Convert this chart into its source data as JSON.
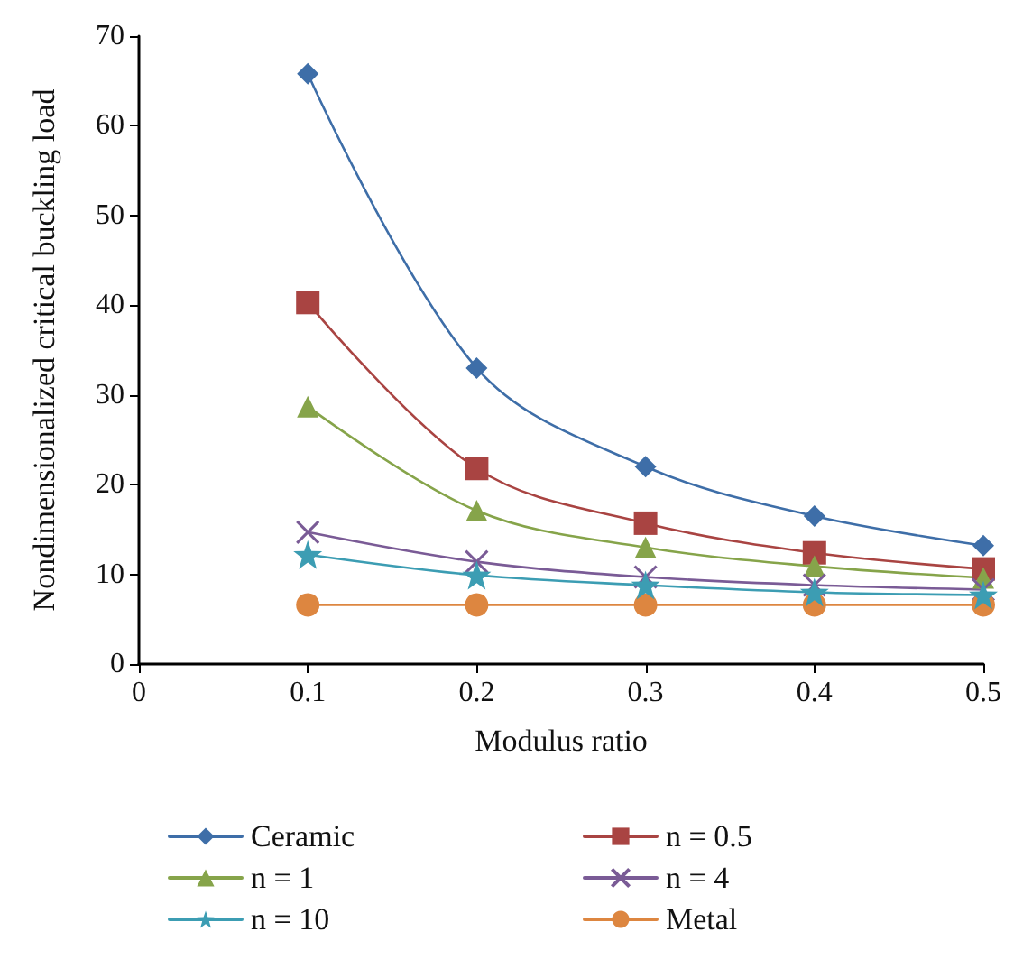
{
  "chart_data": {
    "type": "line",
    "xlabel": "Modulus ratio",
    "ylabel": "Nondimensionalized critical buckling load",
    "x": [
      0.1,
      0.2,
      0.3,
      0.4,
      0.5
    ],
    "xlim": [
      0,
      0.5
    ],
    "xticks": [
      0,
      0.1,
      0.2,
      0.3,
      0.4,
      0.5
    ],
    "ylim": [
      0,
      70
    ],
    "yticks": [
      0,
      10,
      20,
      30,
      40,
      50,
      60,
      70
    ],
    "grid": false,
    "legend": "bottom",
    "series": [
      {
        "name": "Ceramic",
        "color": "#3e6ea8",
        "marker": "diamond",
        "values": [
          65.8,
          33.0,
          22.0,
          16.5,
          13.2
        ]
      },
      {
        "name": "n = 0.5",
        "color": "#a94442",
        "marker": "square",
        "values": [
          40.3,
          21.8,
          15.7,
          12.4,
          10.6
        ]
      },
      {
        "name": "n = 1",
        "color": "#86a44a",
        "marker": "triangle",
        "values": [
          28.7,
          17.1,
          13.0,
          10.9,
          9.6
        ]
      },
      {
        "name": "n = 4",
        "color": "#7a5b96",
        "marker": "cross",
        "values": [
          14.7,
          11.4,
          9.7,
          8.8,
          8.3
        ]
      },
      {
        "name": "n = 10",
        "color": "#3c9db3",
        "marker": "star",
        "values": [
          12.2,
          9.9,
          8.8,
          8.0,
          7.7
        ]
      },
      {
        "name": "Metal",
        "color": "#dd8640",
        "marker": "circle",
        "values": [
          6.6,
          6.6,
          6.6,
          6.6,
          6.6
        ]
      }
    ]
  }
}
